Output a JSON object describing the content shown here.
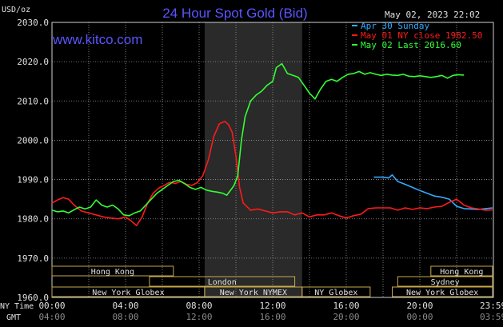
{
  "chart_data": {
    "type": "line",
    "title": "24 Hour Spot Gold (Bid)",
    "ylabel": "USD/oz",
    "watermark": "www.kitco.com",
    "timestamp": "May 02, 2023 22:02",
    "ylim": [
      1960,
      2030
    ],
    "yticks": [
      "2030.0",
      "2020.0",
      "2010.0",
      "2000.0",
      "1990.0",
      "1980.0",
      "1970.0",
      "1960.0"
    ],
    "xlim": [
      0,
      24
    ],
    "xticks_ny": [
      "00:00",
      "04:00",
      "08:00",
      "12:00",
      "16:00",
      "20:00",
      "23:59"
    ],
    "xticks_gmt": [
      "04:00",
      "08:00",
      "12:00",
      "16:00",
      "20:00",
      "00:00",
      "03:59"
    ],
    "xlabel_ny": "NY Time",
    "xlabel_gmt": "GMT",
    "shaded_hours": [
      8.3,
      13.6
    ],
    "grid": true,
    "legend_position": "top-right",
    "series": [
      {
        "name": "Apr 30 Sunday",
        "color": "#33aaff",
        "x": [
          17.5,
          18.0,
          18.3,
          18.5,
          18.8,
          19.2,
          19.6,
          20.0,
          20.4,
          20.8,
          21.2,
          21.6,
          22.0,
          22.4,
          22.8,
          23.2,
          23.6,
          23.95
        ],
        "y": [
          1990.6,
          1990.6,
          1990.4,
          1991.2,
          1989.5,
          1988.8,
          1988.0,
          1987.2,
          1986.5,
          1985.8,
          1985.5,
          1985.0,
          1983.2,
          1982.6,
          1982.5,
          1982.4,
          1982.6,
          1982.8
        ]
      },
      {
        "name": "May 01 NY close 1982.50",
        "color": "#ff1a1a",
        "x": [
          0,
          0.3,
          0.6,
          0.9,
          1.2,
          1.6,
          2.0,
          2.4,
          2.8,
          3.2,
          3.6,
          4.0,
          4.3,
          4.6,
          4.9,
          5.2,
          5.5,
          5.8,
          6.1,
          6.4,
          6.7,
          7.0,
          7.3,
          7.6,
          7.9,
          8.2,
          8.5,
          8.8,
          9.1,
          9.4,
          9.6,
          9.8,
          10.0,
          10.2,
          10.4,
          10.8,
          11.2,
          11.6,
          12.0,
          12.4,
          12.8,
          13.2,
          13.6,
          14.0,
          14.4,
          14.8,
          15.2,
          15.6,
          16.0,
          16.4,
          16.8,
          17.2,
          17.6,
          18.0,
          18.4,
          18.8,
          19.2,
          19.6,
          20.0,
          20.4,
          20.8,
          21.2,
          21.6,
          22.0,
          22.4,
          22.8,
          23.2,
          23.6,
          23.95
        ],
        "y": [
          1984.0,
          1984.8,
          1985.4,
          1985.0,
          1983.5,
          1982.0,
          1981.5,
          1981.0,
          1980.5,
          1980.2,
          1980.0,
          1980.5,
          1979.5,
          1978.3,
          1980.5,
          1984.0,
          1986.5,
          1987.8,
          1988.5,
          1989.3,
          1989.0,
          1989.5,
          1988.8,
          1988.5,
          1989.2,
          1991.0,
          1995.0,
          2001.0,
          2004.2,
          2004.8,
          2004.0,
          2002.0,
          1996.0,
          1988.0,
          1984.0,
          1982.2,
          1982.5,
          1982.0,
          1981.5,
          1981.8,
          1981.8,
          1981.0,
          1981.5,
          1980.5,
          1981.0,
          1981.0,
          1981.5,
          1980.8,
          1980.2,
          1980.8,
          1981.2,
          1982.6,
          1982.8,
          1982.8,
          1982.8,
          1982.2,
          1982.8,
          1982.4,
          1982.8,
          1982.6,
          1983.0,
          1983.2,
          1984.2,
          1985.0,
          1983.5,
          1982.8,
          1982.5,
          1982.2,
          1982.3
        ]
      },
      {
        "name": "May 02 Last 2016.60",
        "color": "#33ff33",
        "x": [
          0,
          0.3,
          0.6,
          0.9,
          1.2,
          1.5,
          1.8,
          2.1,
          2.4,
          2.7,
          3.0,
          3.3,
          3.6,
          3.9,
          4.2,
          4.5,
          4.8,
          5.1,
          5.4,
          5.7,
          6.0,
          6.3,
          6.6,
          6.9,
          7.2,
          7.5,
          7.8,
          8.1,
          8.4,
          8.7,
          9.0,
          9.3,
          9.5,
          9.7,
          9.9,
          10.1,
          10.3,
          10.5,
          10.8,
          11.1,
          11.4,
          11.7,
          12.0,
          12.2,
          12.5,
          12.8,
          13.1,
          13.4,
          13.7,
          14.0,
          14.3,
          14.6,
          14.9,
          15.2,
          15.5,
          15.8,
          16.1,
          16.4,
          16.7,
          17.0,
          17.3,
          17.6,
          17.9,
          18.2,
          18.5,
          18.8,
          19.1,
          19.4,
          19.7,
          20.0,
          20.3,
          20.6,
          20.9,
          21.2,
          21.5,
          21.8,
          22.1,
          22.4
        ],
        "y": [
          1982.2,
          1981.8,
          1982.0,
          1981.5,
          1982.3,
          1983.0,
          1982.5,
          1983.0,
          1984.8,
          1983.5,
          1983.0,
          1983.5,
          1982.5,
          1981.0,
          1980.8,
          1981.5,
          1982.0,
          1983.5,
          1985.0,
          1986.5,
          1987.5,
          1988.5,
          1989.5,
          1989.8,
          1989.0,
          1988.0,
          1987.5,
          1988.0,
          1987.3,
          1987.0,
          1986.8,
          1986.5,
          1986.0,
          1987.2,
          1988.5,
          1991.0,
          2000.0,
          2006.0,
          2010.0,
          2011.5,
          2012.5,
          2014.0,
          2015.0,
          2018.5,
          2019.5,
          2017.0,
          2016.5,
          2016.0,
          2014.0,
          2012.0,
          2010.5,
          2013.0,
          2015.0,
          2015.5,
          2015.0,
          2016.0,
          2016.8,
          2017.0,
          2017.5,
          2016.8,
          2017.2,
          2016.8,
          2016.5,
          2016.8,
          2016.6,
          2016.5,
          2016.8,
          2016.3,
          2016.2,
          2016.4,
          2016.2,
          2016.0,
          2016.2,
          2016.5,
          2015.8,
          2016.5,
          2016.7,
          2016.6
        ]
      }
    ],
    "sessions": [
      {
        "label": "Hong Kong",
        "start": 0,
        "end": 6.6,
        "row": 0
      },
      {
        "label": "London",
        "start": 5.3,
        "end": 13.2,
        "row": 1
      },
      {
        "label": "New York Globex",
        "start": 0,
        "end": 8.3,
        "row": 2
      },
      {
        "label": "New York NYMEX",
        "start": 8.3,
        "end": 13.6,
        "row": 2
      },
      {
        "label": "NY Globex",
        "start": 13.6,
        "end": 17.3,
        "row": 2
      },
      {
        "label": "Hong Kong",
        "start": 20.6,
        "end": 23.95,
        "row": 0
      },
      {
        "label": "Sydney",
        "start": 18.8,
        "end": 23.95,
        "row": 1
      },
      {
        "label": "New York Globex",
        "start": 18.5,
        "end": 23.95,
        "row": 2
      }
    ]
  }
}
